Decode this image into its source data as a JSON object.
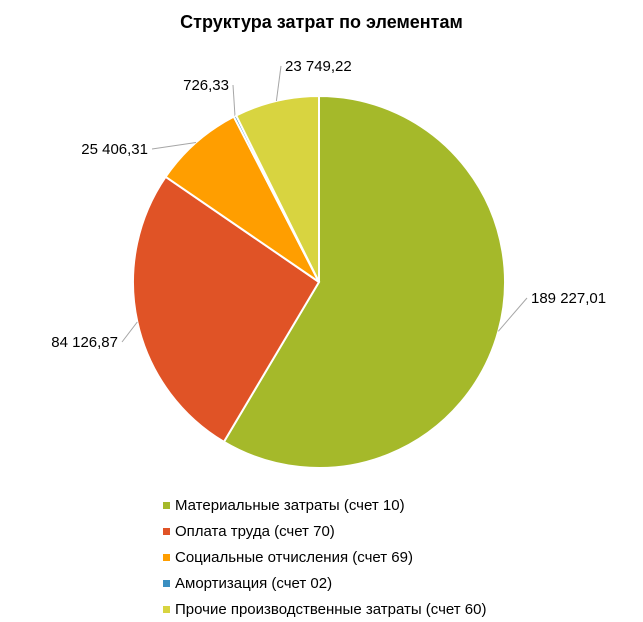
{
  "chart_data": {
    "type": "pie",
    "title": "Структура затрат по элементам",
    "series": [
      {
        "name": "Материальные затраты (счет 10)",
        "value": 189227.01,
        "label": "189 227,01",
        "color": "#A5B92A"
      },
      {
        "name": "Оплата труда (счет 70)",
        "value": 84126.87,
        "label": "84 126,87",
        "color": "#E05326"
      },
      {
        "name": "Социальные отчисления (счет 69)",
        "value": 25406.31,
        "label": "25 406,31",
        "color": "#FF9E00"
      },
      {
        "name": "Амортизация (счет 02)",
        "value": 726.33,
        "label": "726,33",
        "color": "#3A8FC1"
      },
      {
        "name": "Прочие производственные затраты (счет 60)",
        "value": 23749.22,
        "label": "23 749,22",
        "color": "#D8D440"
      }
    ],
    "start_angle": "12 o'clock",
    "direction": "clockwise",
    "legend_position": "bottom"
  }
}
